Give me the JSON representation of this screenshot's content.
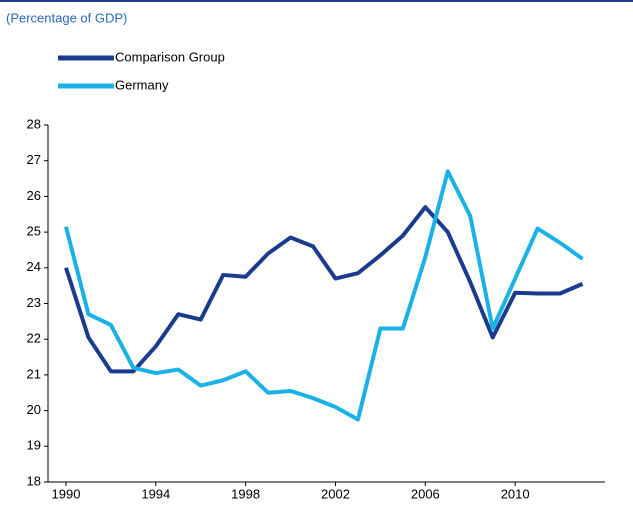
{
  "chart_data": {
    "type": "line",
    "subtitle": "(Percentage of GDP)",
    "x": [
      1990,
      1991,
      1992,
      1993,
      1994,
      1995,
      1996,
      1997,
      1998,
      1999,
      2000,
      2001,
      2002,
      2003,
      2004,
      2005,
      2006,
      2007,
      2008,
      2009,
      2010,
      2011,
      2012,
      2013
    ],
    "series": [
      {
        "name": "Comparison Group",
        "color": "#1b3b8e",
        "values": [
          24.0,
          22.05,
          21.1,
          21.1,
          21.8,
          22.7,
          22.55,
          23.8,
          23.75,
          24.4,
          24.85,
          24.6,
          23.7,
          23.85,
          24.35,
          24.9,
          25.7,
          25.0,
          23.6,
          22.05,
          23.3,
          23.28,
          23.28,
          23.55
        ]
      },
      {
        "name": "Germany",
        "color": "#1ab2e6",
        "values": [
          25.15,
          22.7,
          22.4,
          21.2,
          21.05,
          21.15,
          20.7,
          20.85,
          21.1,
          20.5,
          20.55,
          20.35,
          20.1,
          19.75,
          22.3,
          22.3,
          24.3,
          26.7,
          25.45,
          22.3,
          23.7,
          25.1,
          24.7,
          24.25
        ]
      }
    ],
    "xlim": [
      1989.2,
      2014
    ],
    "xticks": [
      1990,
      1994,
      1998,
      2002,
      2006,
      2010
    ],
    "ylim": [
      18,
      28
    ],
    "yticks": [
      18,
      19,
      20,
      21,
      22,
      23,
      24,
      25,
      26,
      27,
      28
    ]
  }
}
